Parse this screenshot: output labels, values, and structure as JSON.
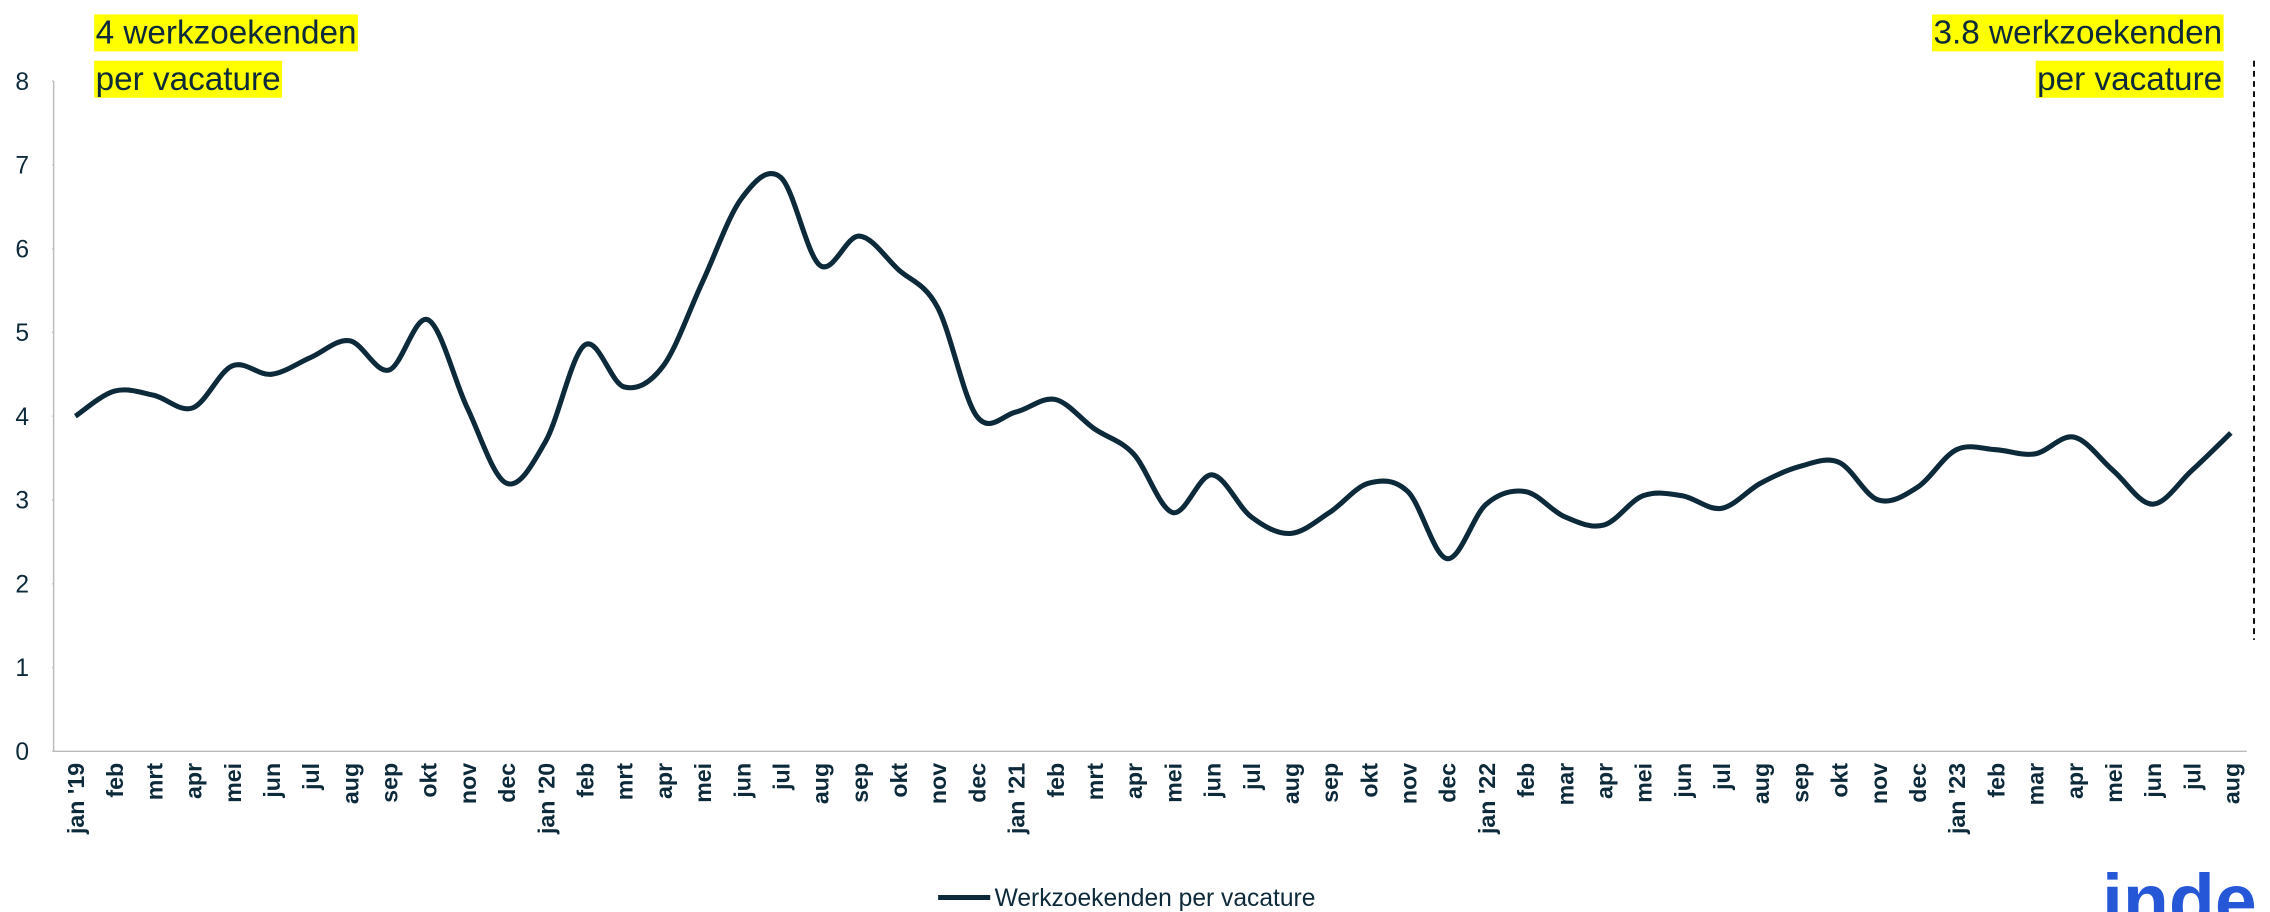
{
  "chart_data": {
    "type": "line",
    "categories": [
      "jan '19",
      "feb",
      "mrt",
      "apr",
      "mei",
      "jun",
      "jul",
      "aug",
      "sep",
      "okt",
      "nov",
      "dec",
      "jan '20",
      "feb",
      "mrt",
      "apr",
      "mei",
      "jun",
      "jul",
      "aug",
      "sep",
      "okt",
      "nov",
      "dec",
      "jan '21",
      "feb",
      "mrt",
      "apr",
      "mei",
      "jun",
      "jul",
      "aug",
      "sep",
      "okt",
      "nov",
      "dec",
      "jan '22",
      "feb",
      "mar",
      "apr",
      "mei",
      "jun",
      "jul",
      "aug",
      "sep",
      "okt",
      "nov",
      "dec",
      "jan '23",
      "feb",
      "mar",
      "apr",
      "mei",
      "jun",
      "jul",
      "aug"
    ],
    "series": [
      {
        "name": "Werkzoekenden per vacature",
        "color": "#0d2a3a",
        "values": [
          4.0,
          4.3,
          4.25,
          4.1,
          4.6,
          4.5,
          4.7,
          4.9,
          4.55,
          5.15,
          4.1,
          3.2,
          3.7,
          4.85,
          4.35,
          4.6,
          5.6,
          6.6,
          6.85,
          5.8,
          6.15,
          5.75,
          5.3,
          4.0,
          4.05,
          4.2,
          3.85,
          3.55,
          2.85,
          3.3,
          2.8,
          2.6,
          2.85,
          3.2,
          3.1,
          2.3,
          2.95,
          3.1,
          2.8,
          2.7,
          3.05,
          3.05,
          2.9,
          3.2,
          3.4,
          3.45,
          3.0,
          3.15,
          3.6,
          3.6,
          3.55,
          3.75,
          3.35,
          2.95,
          3.35,
          3.8
        ]
      }
    ],
    "ylim": [
      0,
      8
    ],
    "yticks": [
      0,
      1,
      2,
      3,
      4,
      5,
      6,
      7,
      8
    ],
    "grid": false,
    "legend": "bottom",
    "annotations": [
      {
        "lines": [
          "4 werkzoekenden",
          "per vacature"
        ],
        "align": "left"
      },
      {
        "lines": [
          "3.8 werkzoekenden",
          "per vacature"
        ],
        "align": "right"
      }
    ],
    "logo": "inde"
  }
}
